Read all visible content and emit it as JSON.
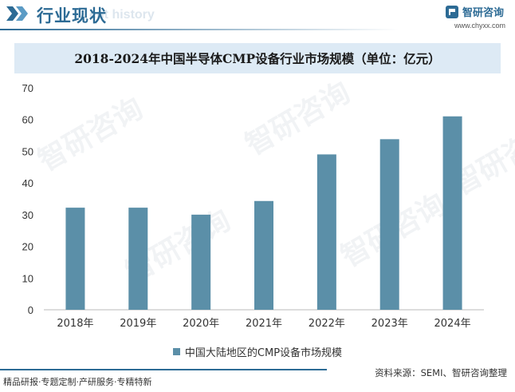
{
  "header": {
    "title": "行业现状",
    "ghost_text": "ent history",
    "brand_name": "智研咨询",
    "brand_url": "www.chyxx.com"
  },
  "colors": {
    "accent": "#2d6b95",
    "bar": "#5b8fa8",
    "title_bg": "#ddeaf5"
  },
  "watermark_text": "智研咨询",
  "chart_data": {
    "type": "bar",
    "title": "2018-2024年中国半导体CMP设备行业市场规模（单位：亿元）",
    "categories": [
      "2018年",
      "2019年",
      "2020年",
      "2021年",
      "2022年",
      "2023年",
      "2024年"
    ],
    "series": [
      {
        "name": "中国大陆地区的CMP设备市场规模",
        "values": [
          32.2,
          32.2,
          30.0,
          34.3,
          49.0,
          53.8,
          61.0
        ]
      }
    ],
    "ylim": [
      0,
      70
    ],
    "yticks": [
      0,
      10,
      20,
      30,
      40,
      50,
      60,
      70
    ],
    "xlabel": "",
    "ylabel": "",
    "grid": false,
    "legend_position": "bottom"
  },
  "footer": {
    "left": "精品研报·专题定制·产研服务·专精特新",
    "source": "资料来源：SEMI、智研咨询整理"
  }
}
